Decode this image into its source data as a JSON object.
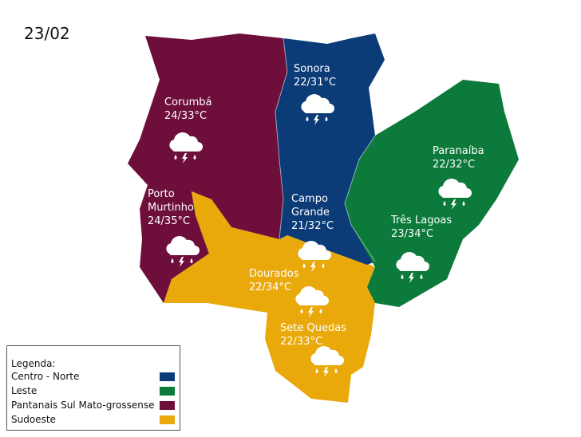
{
  "date": "23/02",
  "regions": [
    {
      "name": "Centro - Norte",
      "color": "#0c3c78"
    },
    {
      "name": "Leste",
      "color": "#0b7a3a"
    },
    {
      "name": "Pantanais Sul Mato-grossense",
      "color": "#6e0f3b"
    },
    {
      "name": "Sudoeste",
      "color": "#e9a90a"
    }
  ],
  "legend": {
    "title": "Legenda:"
  },
  "cities": [
    {
      "name": "Corumbá",
      "temp": "24/33°C",
      "icon": "cloud-rain-lightning-icon"
    },
    {
      "name": "Porto Murtinho",
      "temp": "24/35°C",
      "icon": "cloud-rain-lightning-icon"
    },
    {
      "name": "Sonora",
      "temp": "22/31°C",
      "icon": "cloud-rain-lightning-icon"
    },
    {
      "name": "Campo Grande",
      "temp": "21/32°C",
      "icon": "cloud-rain-lightning-icon"
    },
    {
      "name": "Paranaíba",
      "temp": "22/32°C",
      "icon": "cloud-rain-lightning-icon"
    },
    {
      "name": "Três Lagoas",
      "temp": "23/34°C",
      "icon": "cloud-rain-lightning-icon"
    },
    {
      "name": "Dourados",
      "temp": "22/34°C",
      "icon": "cloud-rain-lightning-icon"
    },
    {
      "name": "Sete Quedas",
      "temp": "22/33°C",
      "icon": "cloud-rain-lightning-icon"
    }
  ]
}
